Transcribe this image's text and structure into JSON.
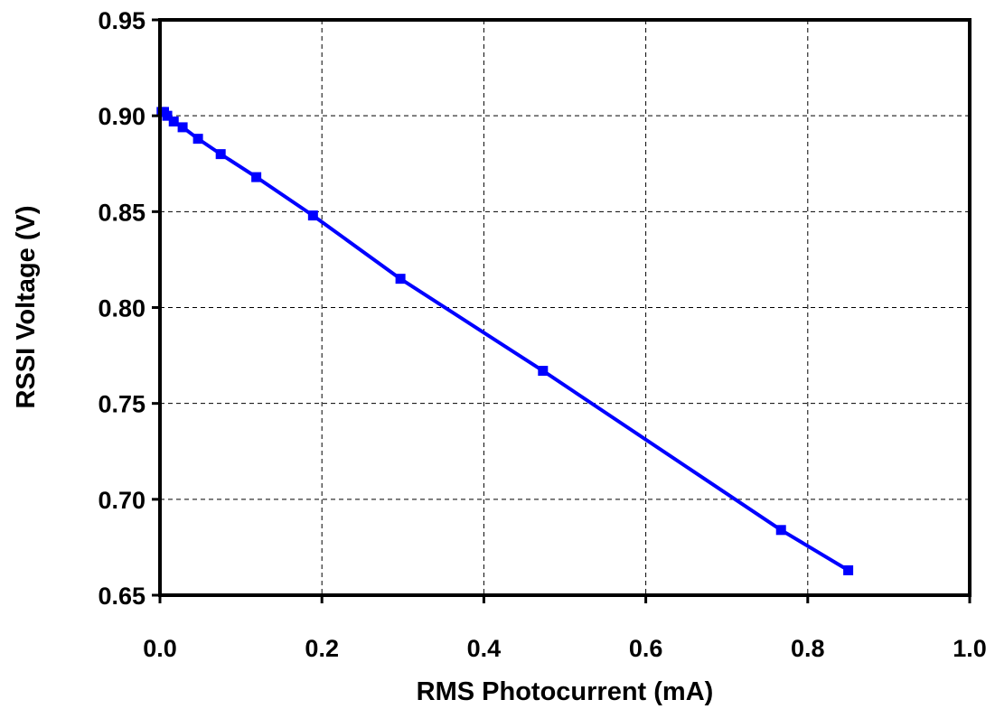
{
  "chart_data": {
    "type": "line",
    "title": "",
    "xlabel": "RMS Photocurrent (mA)",
    "ylabel": "RSSI Voltage (V)",
    "xlim": [
      0.0,
      1.0
    ],
    "ylim": [
      0.65,
      0.95
    ],
    "xticks": [
      0.0,
      0.2,
      0.4,
      0.6,
      0.8,
      1.0
    ],
    "xtick_labels": [
      "0.0",
      "0.2",
      "0.4",
      "0.6",
      "0.8",
      "1.0"
    ],
    "yticks": [
      0.65,
      0.7,
      0.75,
      0.8,
      0.85,
      0.9,
      0.95
    ],
    "ytick_labels": [
      "0.65",
      "0.70",
      "0.75",
      "0.80",
      "0.85",
      "0.90",
      "0.95"
    ],
    "grid": true,
    "series": [
      {
        "color": "#0000ff",
        "marker": "square",
        "x": [
          0.002,
          0.005,
          0.009,
          0.017,
          0.028,
          0.047,
          0.075,
          0.119,
          0.189,
          0.297,
          0.473,
          0.767,
          0.85
        ],
        "y": [
          0.902,
          0.902,
          0.9,
          0.897,
          0.894,
          0.888,
          0.88,
          0.868,
          0.848,
          0.815,
          0.767,
          0.684,
          0.663
        ]
      }
    ]
  }
}
